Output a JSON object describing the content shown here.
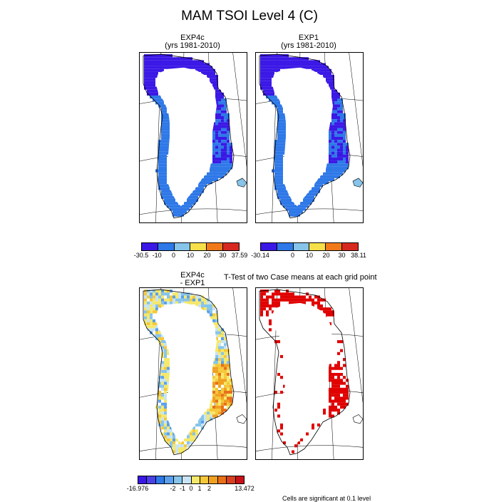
{
  "figure": {
    "title": "MAM TSOI Level 4 (C)",
    "footnote": "Cells are significant at 0.1 level"
  },
  "panels": [
    {
      "id": "p1",
      "line1": "EXP4c",
      "line2": "(yrs 1981-2010)"
    },
    {
      "id": "p2",
      "line1": "EXP1",
      "line2": "(yrs 1981-2010)"
    },
    {
      "id": "p3",
      "line1": "EXP4c",
      "line2": "- EXP1"
    },
    {
      "id": "p4",
      "line1": "T-Test of two Case means at each grid point",
      "line2": ""
    }
  ],
  "colorbars": [
    {
      "id": "cb1",
      "colors": [
        "#3b18e6",
        "#2e78e8",
        "#86c4ea",
        "#f5e04a",
        "#f07a1a",
        "#d7281f"
      ],
      "ticks": [
        "-30.5",
        "-10",
        "0",
        "10",
        "20",
        "30",
        "37.59"
      ]
    },
    {
      "id": "cb2",
      "colors": [
        "#3b18e6",
        "#2e78e8",
        "#86c4ea",
        "#f5e04a",
        "#f07a1a",
        "#d7281f"
      ],
      "ticks": [
        "-30.14",
        "0",
        "10",
        "20",
        "30",
        "38.11"
      ]
    },
    {
      "id": "cb3",
      "colors": [
        "#3b18e6",
        "#4a40ea",
        "#2e78e8",
        "#5aa0ec",
        "#86c4ea",
        "#c8e4f4",
        "#f5e86a",
        "#f5c83a",
        "#f0a020",
        "#e87018",
        "#d74020",
        "#c81018"
      ],
      "ticks": [
        "-16.976",
        "-2",
        "-1",
        "0",
        "1",
        "2",
        "13.472"
      ]
    }
  ],
  "chart_data": [
    {
      "type": "heatmap",
      "title": "EXP4c (yrs 1981-2010)",
      "variable": "TSOI Level 4",
      "season": "MAM",
      "units": "C",
      "zlim": [
        -30.5,
        37.59
      ],
      "contour_levels": [
        -10,
        0,
        10,
        20,
        30
      ],
      "description_of_values": "Northern and northeastern coastal cells near -30 to -10 C; southern and western coastal cells between -10 and 0 C"
    },
    {
      "type": "heatmap",
      "title": "EXP1 (yrs 1981-2010)",
      "variable": "TSOI Level 4",
      "season": "MAM",
      "units": "C",
      "zlim": [
        -30.14,
        38.11
      ],
      "contour_levels": [
        0,
        10,
        20,
        30
      ]
    },
    {
      "type": "heatmap",
      "title": "EXP4c - EXP1",
      "units": "C",
      "zlim": [
        -16.976,
        13.472
      ],
      "contour_levels": [
        -2,
        -1,
        0,
        1,
        2
      ]
    },
    {
      "type": "heatmap",
      "title": "T-Test of two Case means at each grid point",
      "significance_level": 0.1,
      "marked_color": "#e00000"
    }
  ]
}
